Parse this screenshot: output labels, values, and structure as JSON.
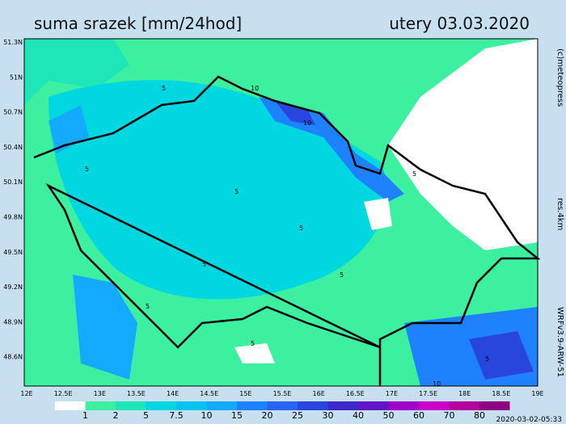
{
  "header": {
    "title": "suma srazek [mm/24hod]",
    "date": "utery 03.03.2020"
  },
  "map": {
    "lat_labels": [
      "51.3N",
      "51N",
      "50.7N",
      "50.4N",
      "50.1N",
      "49.8N",
      "49.5N",
      "49.2N",
      "48.9N",
      "48.6N"
    ],
    "lon_labels": [
      "12E",
      "12.5E",
      "13E",
      "13.5E",
      "14E",
      "14.5E",
      "15E",
      "15.5E",
      "16E",
      "16.5E",
      "17E",
      "17.5E",
      "18E",
      "18.5E",
      "19E"
    ],
    "contour_labels": [
      "5",
      "10",
      "5",
      "10",
      "5",
      "5",
      "5",
      "5",
      "5",
      "5",
      "5",
      "10",
      "5"
    ]
  },
  "legend": {
    "colors": [
      "#ffffff",
      "#3cf0a0",
      "#1ee6b9",
      "#00d7e1",
      "#00c3f0",
      "#14aaff",
      "#1e82ff",
      "#2864f0",
      "#2846dc",
      "#3c28c8",
      "#6414c8",
      "#a000c8",
      "#c800c8",
      "#b400a0",
      "#8c0082"
    ],
    "labels": [
      "1",
      "2",
      "5",
      "7.5",
      "10",
      "15",
      "20",
      "25",
      "30",
      "40",
      "50",
      "60",
      "70",
      "80"
    ]
  },
  "credits": {
    "copyright": "(c)meteopress",
    "resolution": "res.4km",
    "model": "WRFv3.9-ARW-51",
    "timestamp": "2020-03-02-05:33"
  }
}
